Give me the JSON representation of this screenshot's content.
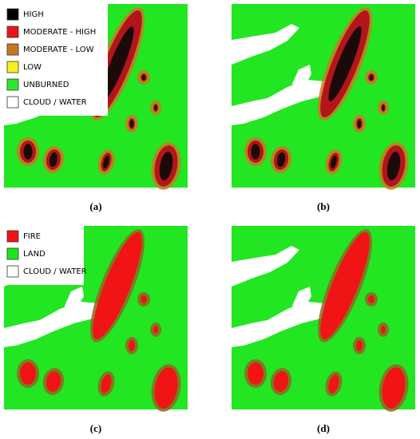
{
  "panels": [
    {
      "label": "(a)"
    },
    {
      "label": "(b)"
    },
    {
      "label": "(c)"
    },
    {
      "label": "(d)"
    }
  ],
  "legends": [
    {
      "panel": 0,
      "items": [
        {
          "label": "HIGH",
          "color": "#000000"
        },
        {
          "label": "MODERATE - HIGH",
          "color": "#e8141c"
        },
        {
          "label": "MODERATE - LOW",
          "color": "#c8781e"
        },
        {
          "label": "LOW",
          "color": "#f5f01e"
        },
        {
          "label": "UNBURNED",
          "color": "#2ee82e"
        },
        {
          "label": "CLOUD / WATER",
          "color": "#ffffff"
        }
      ]
    },
    {
      "panel": 2,
      "items": [
        {
          "label": "FIRE",
          "color": "#f01414"
        },
        {
          "label": "LAND",
          "color": "#1ee61e"
        },
        {
          "label": "CLOUD / WATER",
          "color": "#ffffff"
        }
      ]
    }
  ]
}
